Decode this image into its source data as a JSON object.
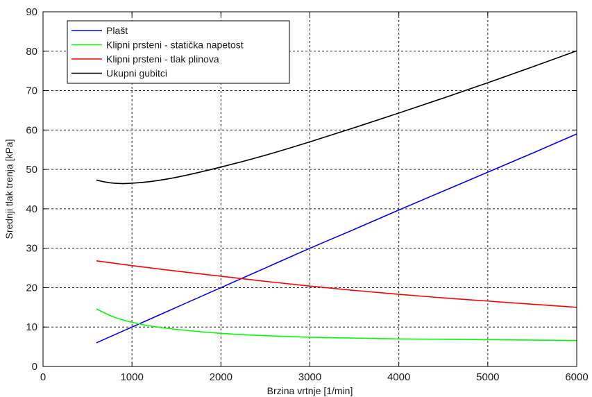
{
  "chart_data": {
    "type": "line",
    "title": "",
    "xlabel": "Brzina vrtnje [1/min]",
    "ylabel": "Srednji tlak trenja [kPa]",
    "xlim": [
      0,
      6000
    ],
    "ylim": [
      0,
      90
    ],
    "xticks": [
      0,
      1000,
      2000,
      3000,
      4000,
      5000,
      6000
    ],
    "yticks": [
      0,
      10,
      20,
      30,
      40,
      50,
      60,
      70,
      80,
      90
    ],
    "grid": true,
    "legend_position": "top-left",
    "series": [
      {
        "name": "Plašt",
        "color": "#0000ff",
        "x": [
          600,
          1000,
          1500,
          2000,
          2500,
          3000,
          3500,
          4000,
          4500,
          5000,
          5500,
          6000
        ],
        "y": [
          6.0,
          10.0,
          15.0,
          20.0,
          25.0,
          30.0,
          34.8,
          39.7,
          44.5,
          49.3,
          54.1,
          59.0
        ]
      },
      {
        "name": "Klipni prsteni - statička napetost",
        "color": "#00ff00",
        "x": [
          600,
          800,
          1000,
          1200,
          1500,
          2000,
          2500,
          3000,
          3500,
          4000,
          4500,
          5000,
          5500,
          6000
        ],
        "y": [
          14.6,
          12.5,
          11.2,
          10.3,
          9.4,
          8.4,
          7.8,
          7.4,
          7.2,
          7.0,
          6.9,
          6.8,
          6.7,
          6.6
        ]
      },
      {
        "name": "Klipni prsteni - tlak plinova",
        "color": "#ff0000",
        "x": [
          600,
          1000,
          1500,
          2000,
          2500,
          3000,
          3500,
          4000,
          4500,
          5000,
          5500,
          6000
        ],
        "y": [
          26.8,
          25.6,
          24.2,
          22.9,
          21.6,
          20.4,
          19.3,
          18.3,
          17.4,
          16.6,
          15.8,
          15.0
        ]
      },
      {
        "name": "Ukupni gubitci",
        "color": "#000000",
        "x": [
          600,
          700,
          800,
          900,
          1000,
          1200,
          1500,
          2000,
          2500,
          3000,
          3500,
          4000,
          4500,
          5000,
          5500,
          6000
        ],
        "y": [
          47.3,
          46.8,
          46.5,
          46.4,
          46.5,
          46.9,
          48.0,
          50.6,
          53.6,
          57.0,
          60.6,
          64.3,
          68.1,
          72.0,
          76.0,
          80.1
        ]
      }
    ]
  }
}
